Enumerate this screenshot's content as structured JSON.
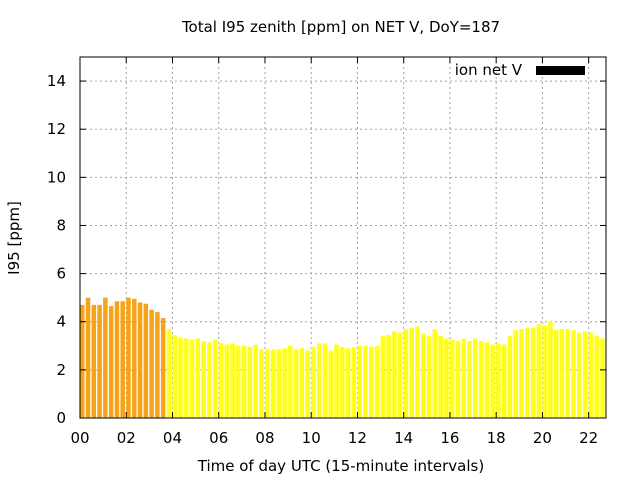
{
  "chart_data": {
    "type": "bar",
    "title": "Total I95 zenith [ppm] on NET V, DoY=187",
    "xlabel": "Time of day UTC (15-minute intervals)",
    "ylabel": "I95 [ppm]",
    "xlim": [
      0,
      22.75
    ],
    "ylim": [
      0,
      15
    ],
    "grid": true,
    "legend_position": "top-right",
    "x_ticks": [
      {
        "value": 0,
        "label": "00"
      },
      {
        "value": 2,
        "label": "02"
      },
      {
        "value": 4,
        "label": "04"
      },
      {
        "value": 6,
        "label": "06"
      },
      {
        "value": 8,
        "label": "08"
      },
      {
        "value": 10,
        "label": "10"
      },
      {
        "value": 12,
        "label": "12"
      },
      {
        "value": 14,
        "label": "14"
      },
      {
        "value": 16,
        "label": "16"
      },
      {
        "value": 18,
        "label": "18"
      },
      {
        "value": 20,
        "label": "20"
      },
      {
        "value": 22,
        "label": "22"
      }
    ],
    "y_ticks": [
      {
        "value": 0,
        "label": "0"
      },
      {
        "value": 2,
        "label": "2"
      },
      {
        "value": 4,
        "label": "4"
      },
      {
        "value": 6,
        "label": "6"
      },
      {
        "value": 8,
        "label": "8"
      },
      {
        "value": 10,
        "label": "10"
      },
      {
        "value": 12,
        "label": "12"
      },
      {
        "value": 14,
        "label": "14"
      }
    ],
    "interval_hours": 0.25,
    "colors": {
      "high": "#f5a41a",
      "normal": "#ffff1a",
      "legend": "#000000"
    },
    "series": [
      {
        "name": "ion net V",
        "values": [
          4.7,
          5.0,
          4.7,
          4.7,
          5.0,
          4.65,
          4.85,
          4.85,
          5.0,
          4.95,
          4.8,
          4.75,
          4.5,
          4.4,
          4.15,
          3.7,
          3.45,
          3.35,
          3.3,
          3.25,
          3.3,
          3.2,
          3.15,
          3.25,
          3.1,
          3.05,
          3.1,
          3.0,
          3.0,
          2.95,
          3.05,
          2.85,
          2.85,
          2.85,
          2.85,
          2.9,
          3.0,
          2.85,
          2.9,
          2.8,
          2.95,
          3.1,
          3.1,
          2.8,
          3.05,
          2.95,
          2.9,
          2.95,
          3.0,
          3.0,
          2.95,
          3.0,
          3.4,
          3.45,
          3.6,
          3.55,
          3.7,
          3.75,
          3.8,
          3.5,
          3.4,
          3.7,
          3.4,
          3.3,
          3.25,
          3.2,
          3.3,
          3.2,
          3.3,
          3.2,
          3.15,
          3.05,
          3.1,
          3.05,
          3.4,
          3.65,
          3.7,
          3.75,
          3.75,
          3.9,
          3.85,
          4.0,
          3.65,
          3.7,
          3.7,
          3.65,
          3.55,
          3.6,
          3.55,
          3.4,
          3.3
        ],
        "highlight_count": 15
      }
    ]
  }
}
